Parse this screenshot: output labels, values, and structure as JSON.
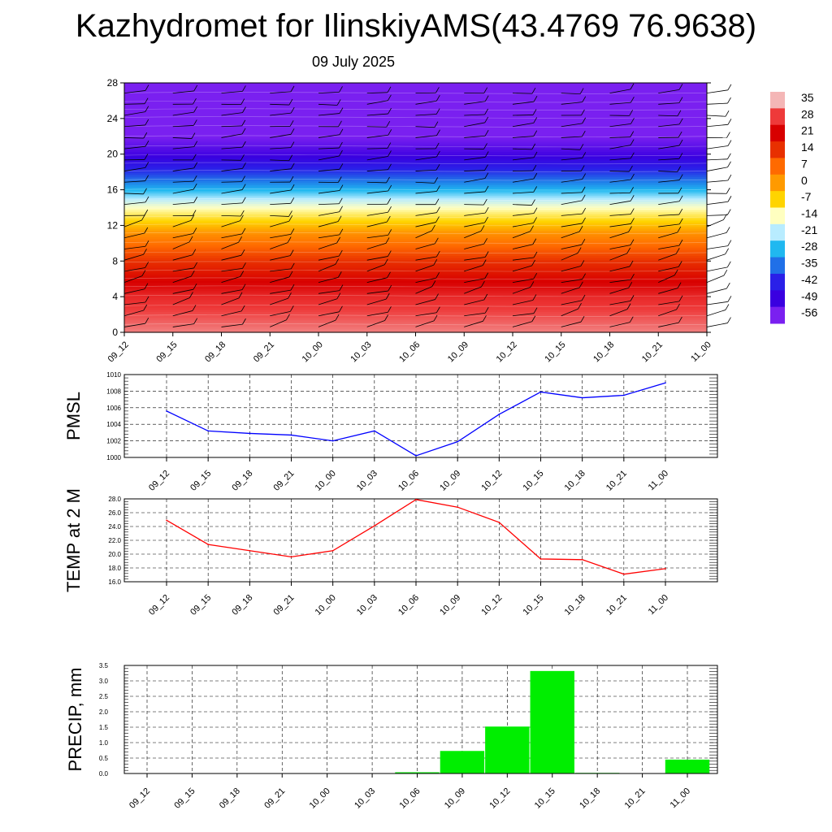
{
  "header": {
    "title": "Kazhydromet for IlinskiyAMS(43.4769 76.9638)",
    "subtitle": "09 July 2025"
  },
  "time_labels": [
    "09_12",
    "09_15",
    "09_18",
    "09_21",
    "10_00",
    "10_03",
    "10_06",
    "10_09",
    "10_12",
    "10_15",
    "10_18",
    "10_21",
    "11_00"
  ],
  "colors": {
    "pmsl_line": "#0000ff",
    "temp_line": "#ff0000",
    "precip_bar": "#00ee00"
  },
  "chart_data": [
    {
      "type": "heatmap",
      "title": "",
      "x": [
        "09_12",
        "09_15",
        "09_18",
        "09_21",
        "10_00",
        "10_03",
        "10_06",
        "10_09",
        "10_12",
        "10_15",
        "10_18",
        "10_21",
        "11_00"
      ],
      "y_ticks": [
        0,
        4,
        8,
        12,
        16,
        20,
        24,
        28
      ],
      "ylim": [
        0,
        28
      ],
      "profile": [
        {
          "y": 0,
          "value": 32
        },
        {
          "y": 4,
          "value": 26
        },
        {
          "y": 8,
          "value": 14
        },
        {
          "y": 11,
          "value": 2
        },
        {
          "y": 12.5,
          "value": -7
        },
        {
          "y": 14,
          "value": -14
        },
        {
          "y": 16,
          "value": -28
        },
        {
          "y": 18,
          "value": -40
        },
        {
          "y": 20,
          "value": -50
        },
        {
          "y": 22,
          "value": -56
        },
        {
          "y": 24,
          "value": -56
        },
        {
          "y": 28,
          "value": -60
        }
      ],
      "colorbar": {
        "labels": [
          "35",
          "28",
          "21",
          "14",
          "7",
          "0",
          "-7",
          "-14",
          "-21",
          "-28",
          "-35",
          "-42",
          "-49",
          "-56"
        ],
        "colors": [
          "#f4b6b6",
          "#ee3a3a",
          "#d80000",
          "#e83000",
          "#ff6a00",
          "#ff9a00",
          "#ffd400",
          "#ffffc0",
          "#b8ecff",
          "#20b8f0",
          "#2070e8",
          "#2a20e8",
          "#3a00e0",
          "#7a20f0"
        ]
      },
      "wind_barbs": true
    },
    {
      "type": "line",
      "ylabel": "PMSL",
      "categories": [
        "09_12",
        "09_15",
        "09_18",
        "09_21",
        "10_00",
        "10_03",
        "10_06",
        "10_09",
        "10_12",
        "10_15",
        "10_18",
        "10_21",
        "11_00"
      ],
      "values": [
        1005.6,
        1003.2,
        1002.9,
        1002.7,
        1002.0,
        1003.2,
        1000.2,
        1001.9,
        1005.2,
        1007.9,
        1007.2,
        1007.5,
        1009.0
      ],
      "ylim": [
        1000,
        1010
      ],
      "y_ticks": [
        "1000",
        "1002",
        "1004",
        "1006",
        "1008",
        "1010"
      ],
      "grid": true
    },
    {
      "type": "line",
      "ylabel": "TEMP at 2 M",
      "categories": [
        "09_12",
        "09_15",
        "09_18",
        "09_21",
        "10_00",
        "10_03",
        "10_06",
        "10_09",
        "10_12",
        "10_15",
        "10_18",
        "10_21",
        "11_00"
      ],
      "values": [
        24.9,
        21.4,
        20.5,
        19.6,
        20.5,
        24.1,
        27.9,
        26.8,
        24.6,
        19.3,
        19.2,
        17.1,
        17.9
      ],
      "ylim": [
        16,
        28
      ],
      "y_ticks": [
        "16.0",
        "18.0",
        "20.0",
        "22.0",
        "24.0",
        "26.0",
        "28.0"
      ],
      "grid": true
    },
    {
      "type": "bar",
      "ylabel": "PRECIP, mm",
      "categories": [
        "09_12",
        "09_15",
        "09_18",
        "09_21",
        "10_00",
        "10_03",
        "10_06",
        "10_09",
        "10_12",
        "10_15",
        "10_18",
        "10_21",
        "11_00"
      ],
      "values": [
        0,
        0,
        0,
        0,
        0,
        0,
        0.04,
        0.73,
        1.52,
        3.32,
        0.02,
        0,
        0.45
      ],
      "ylim": [
        0,
        3.5
      ],
      "y_ticks": [
        "0.0",
        "0.5",
        "1.0",
        "1.5",
        "2.0",
        "2.5",
        "3.0",
        "3.5"
      ],
      "grid": true
    }
  ]
}
